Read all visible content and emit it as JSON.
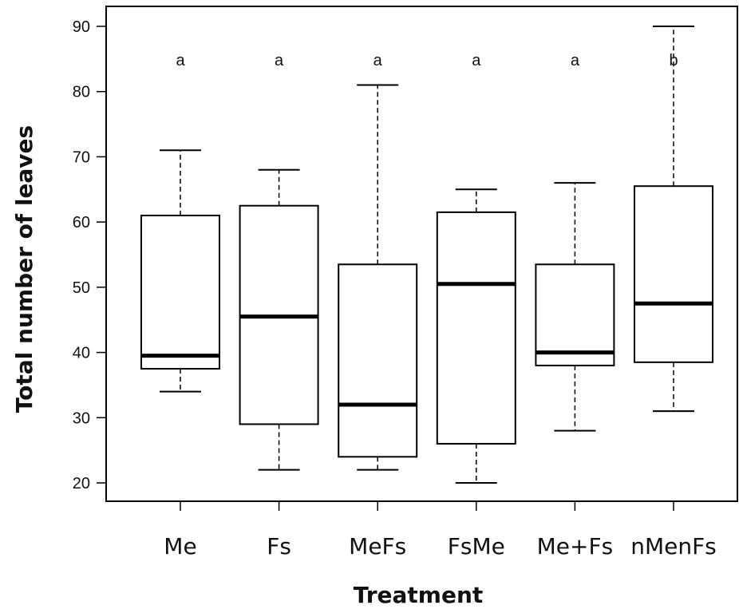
{
  "chart_data": {
    "type": "boxplot",
    "xlabel": "Treatment",
    "ylabel": "Total number of leaves",
    "ylim": [
      18.5,
      92
    ],
    "yticks": [
      20,
      30,
      40,
      50,
      60,
      70,
      80,
      90
    ],
    "ytick_labels": [
      "20",
      "30",
      "40",
      "50",
      "60",
      "70",
      "80",
      "90"
    ],
    "grid": false,
    "categories": [
      "Me",
      "Fs",
      "MeFs",
      "FsMe",
      "Me+Fs",
      "nMenFs"
    ],
    "boxes": [
      {
        "category": "Me",
        "min": 34,
        "q1": 37.5,
        "median": 39.5,
        "q3": 61,
        "max": 71,
        "letter": "a"
      },
      {
        "category": "Fs",
        "min": 22,
        "q1": 29,
        "median": 45.5,
        "q3": 62.5,
        "max": 68,
        "letter": "a"
      },
      {
        "category": "MeFs",
        "min": 22,
        "q1": 24,
        "median": 32,
        "q3": 53.5,
        "max": 81,
        "letter": "a"
      },
      {
        "category": "FsMe",
        "min": 20,
        "q1": 26,
        "median": 50.5,
        "q3": 61.5,
        "max": 65,
        "letter": "a"
      },
      {
        "category": "Me+Fs",
        "min": 28,
        "q1": 38,
        "median": 40,
        "q3": 53.5,
        "max": 66,
        "letter": "a"
      },
      {
        "category": "nMenFs",
        "min": 31,
        "q1": 38.5,
        "median": 47.5,
        "q3": 65.5,
        "max": 90,
        "letter": "b"
      }
    ]
  }
}
